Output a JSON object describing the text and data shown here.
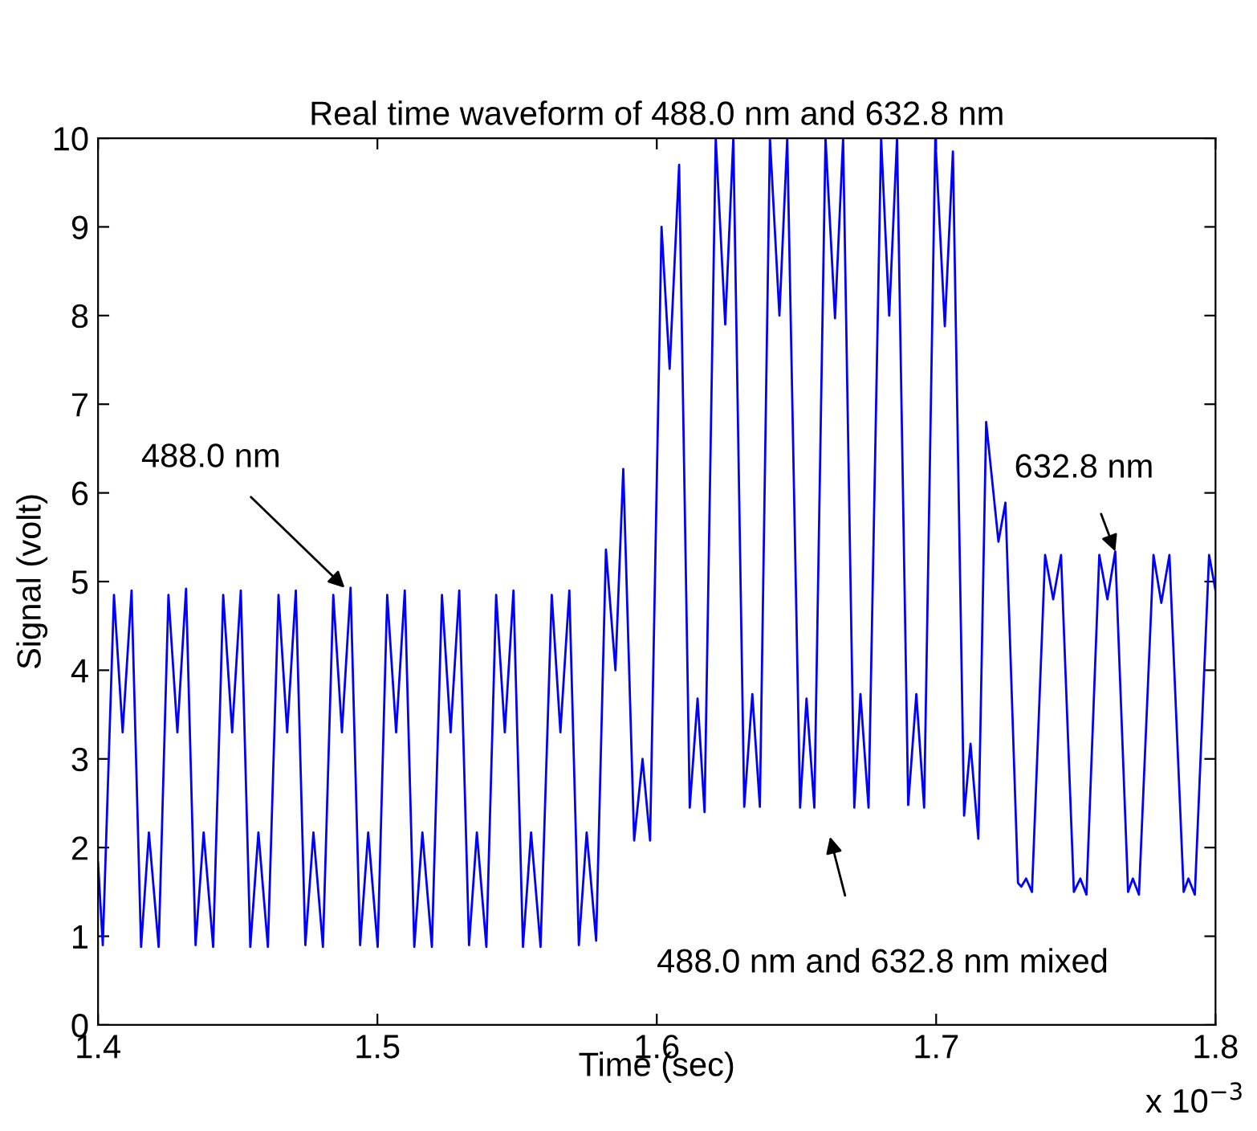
{
  "chart_data": {
    "type": "line",
    "title": "Real time waveform of 488.0 nm and 632.8 nm",
    "xlabel": "Time (sec)",
    "ylabel": "Signal (volt)",
    "xlim": [
      1.4,
      1.8
    ],
    "xticks": [
      1.4,
      1.5,
      1.6,
      1.7,
      1.8
    ],
    "ylim": [
      0,
      10
    ],
    "yticks": [
      0,
      1,
      2,
      3,
      4,
      5,
      6,
      7,
      8,
      9,
      10
    ],
    "grid": false,
    "legend": false,
    "annotations": [
      {
        "text": "488.0 nm",
        "x": 1.4883,
        "y": 4.93
      },
      {
        "text": "632.8 nm",
        "x": 1.7641,
        "y": 5.34
      },
      "488.0 nm and 632.8 nm mixed",
      "x 10$^{−3}$"
    ],
    "series": [
      {
        "color": "#0000ff",
        "x": [
          1.4,
          1.4017,
          1.4057,
          1.4088,
          1.412,
          1.4154,
          1.4182,
          1.4217,
          1.4252,
          1.4284,
          1.4315,
          1.4349,
          1.4378,
          1.4412,
          1.4448,
          1.448,
          1.4511,
          1.4545,
          1.4574,
          1.4608,
          1.4646,
          1.4677,
          1.4708,
          1.4742,
          1.4771,
          1.4805,
          1.4842,
          1.4873,
          1.4904,
          1.4938,
          1.4967,
          1.5001,
          1.5035,
          1.5067,
          1.5098,
          1.5132,
          1.5161,
          1.5195,
          1.5231,
          1.5262,
          1.5293,
          1.5328,
          1.5356,
          1.539,
          1.5425,
          1.5456,
          1.5487,
          1.5521,
          1.555,
          1.5584,
          1.5624,
          1.5655,
          1.5687,
          1.5721,
          1.5749,
          1.5783,
          1.5818,
          1.5852,
          1.588,
          1.5919,
          1.5949,
          1.5976,
          1.6017,
          1.6046,
          1.608,
          1.6118,
          1.6146,
          1.6171,
          1.6211,
          1.6245,
          1.6274,
          1.6313,
          1.6342,
          1.6369,
          1.6405,
          1.6439,
          1.6467,
          1.6513,
          1.6536,
          1.6564,
          1.6604,
          1.6638,
          1.6667,
          1.6707,
          1.6729,
          1.6758,
          1.6803,
          1.6832,
          1.686,
          1.69,
          1.6929,
          1.6957,
          1.6997,
          1.7031,
          1.706,
          1.71,
          1.7123,
          1.7151,
          1.7179,
          1.7223,
          1.7248,
          1.7293,
          1.7305,
          1.7322,
          1.7343,
          1.739,
          1.7419,
          1.7447,
          1.7493,
          1.7516,
          1.7538,
          1.7584,
          1.7613,
          1.7641,
          1.7687,
          1.7704,
          1.7726,
          1.7778,
          1.7806,
          1.7835,
          1.7886,
          1.7903,
          1.7926,
          1.7977,
          1.8
        ],
        "values": [
          1.83,
          0.9,
          4.85,
          3.3,
          4.9,
          0.88,
          2.17,
          0.88,
          4.85,
          3.3,
          4.92,
          0.9,
          2.17,
          0.88,
          4.85,
          3.3,
          4.9,
          0.88,
          2.17,
          0.88,
          4.85,
          3.3,
          4.9,
          0.9,
          2.17,
          0.88,
          4.85,
          3.3,
          4.93,
          0.9,
          2.17,
          0.88,
          4.85,
          3.3,
          4.9,
          0.88,
          2.17,
          0.88,
          4.85,
          3.3,
          4.9,
          0.9,
          2.17,
          0.88,
          4.85,
          3.3,
          4.9,
          0.88,
          2.17,
          0.88,
          4.85,
          3.3,
          4.9,
          0.9,
          2.17,
          0.95,
          5.36,
          4.0,
          6.27,
          2.08,
          3.0,
          2.08,
          9.0,
          7.4,
          9.7,
          2.45,
          3.68,
          2.4,
          10,
          7.9,
          10,
          2.46,
          3.73,
          2.46,
          10,
          8.0,
          10,
          2.45,
          3.68,
          2.45,
          10,
          7.97,
          10,
          2.45,
          3.73,
          2.45,
          10,
          8.0,
          10,
          2.48,
          3.73,
          2.45,
          10,
          7.88,
          9.85,
          2.36,
          3.17,
          2.1,
          6.8,
          5.45,
          5.89,
          1.6,
          1.56,
          1.65,
          1.5,
          5.3,
          4.8,
          5.3,
          1.5,
          1.65,
          1.47,
          5.3,
          4.8,
          5.34,
          1.5,
          1.65,
          1.47,
          5.3,
          4.76,
          5.3,
          1.5,
          1.65,
          1.47,
          5.3,
          4.9
        ]
      }
    ]
  }
}
